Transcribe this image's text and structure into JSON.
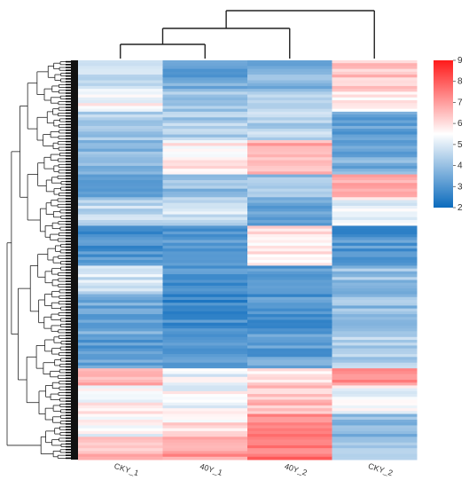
{
  "chart_data": {
    "type": "heatmap",
    "title": "",
    "xlabel": "",
    "ylabel": "",
    "columns": [
      "CKY_1",
      "40Y_1",
      "40Y_2",
      "CKY_2"
    ],
    "column_order_top_to_leaf": "CKY_1, 40Y_1, 40Y_2, CKY_2",
    "column_dendrogram": {
      "merges": [
        {
          "left": "CKY_1",
          "right": "40Y_1"
        },
        {
          "left": "CKY_1+40Y_1",
          "right": "40Y_2"
        },
        {
          "left": "CKY_1+40Y_1+40Y_2",
          "right": "CKY_2"
        }
      ]
    },
    "row_dendrogram": true,
    "colorbar": {
      "min": 2,
      "max": 9,
      "ticks": [
        "2",
        "3",
        "4",
        "5",
        "6",
        "7",
        "8",
        "9"
      ],
      "colors": [
        "#0b6bbd",
        "#ffffff",
        "#ff1a1a"
      ],
      "placement": "right"
    },
    "row_blocks": [
      {
        "rows": 10,
        "values": [
          4.8,
          3.4,
          3.7,
          6.3
        ]
      },
      {
        "rows": 8,
        "values": [
          5.5,
          4.1,
          4.4,
          5.9
        ]
      },
      {
        "rows": 10,
        "values": [
          4.3,
          4.3,
          4.5,
          3.1
        ]
      },
      {
        "rows": 12,
        "values": [
          3.9,
          5.8,
          6.8,
          3.6
        ]
      },
      {
        "rows": 8,
        "values": [
          3.1,
          3.9,
          4.0,
          6.6
        ]
      },
      {
        "rows": 10,
        "values": [
          4.5,
          4.8,
          3.5,
          5.3
        ]
      },
      {
        "rows": 14,
        "values": [
          2.9,
          3.0,
          5.9,
          3.0
        ]
      },
      {
        "rows": 10,
        "values": [
          4.9,
          2.9,
          3.2,
          4.0
        ]
      },
      {
        "rows": 14,
        "values": [
          3.5,
          2.8,
          3.0,
          3.9
        ]
      },
      {
        "rows": 12,
        "values": [
          3.2,
          3.1,
          3.3,
          4.4
        ]
      },
      {
        "rows": 6,
        "values": [
          6.9,
          5.2,
          6.0,
          7.3
        ]
      },
      {
        "rows": 10,
        "values": [
          5.6,
          5.4,
          6.5,
          5.4
        ]
      },
      {
        "rows": 8,
        "values": [
          5.4,
          5.9,
          7.2,
          3.8
        ]
      },
      {
        "rows": 8,
        "values": [
          6.6,
          7.0,
          7.6,
          4.4
        ]
      }
    ]
  }
}
